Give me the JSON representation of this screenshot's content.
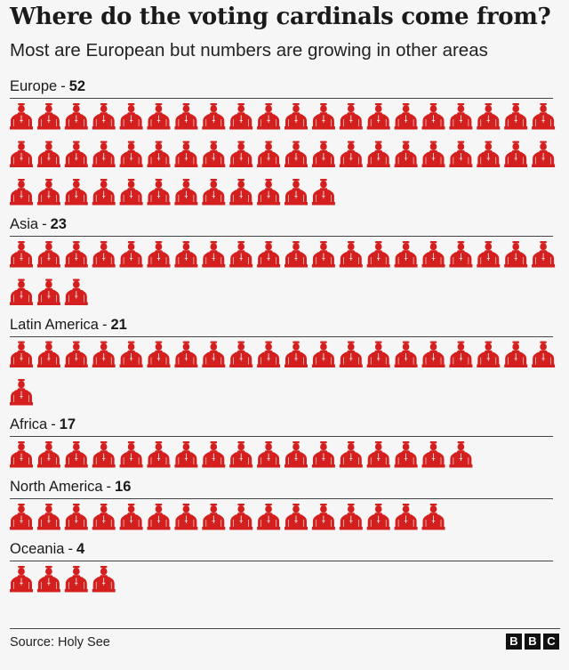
{
  "title": "Where do the voting cardinals come from?",
  "subtitle": "Most are European but numbers are growing in other areas",
  "source": "Source: Holy See",
  "logo": [
    "B",
    "B",
    "C"
  ],
  "colors": {
    "icon": "#d41f1f",
    "background": "#f6f6f6",
    "text": "#1a1a1a"
  },
  "chart_data": {
    "type": "pictogram",
    "title": "Where do the voting cardinals come from?",
    "subtitle": "Most are European but numbers are growing in other areas",
    "icon": "cardinal-icon",
    "unit": "1 icon = 1 cardinal",
    "categories": [
      "Europe",
      "Asia",
      "Latin America",
      "Africa",
      "North America",
      "Oceania"
    ],
    "values": [
      52,
      23,
      21,
      17,
      16,
      4
    ]
  }
}
